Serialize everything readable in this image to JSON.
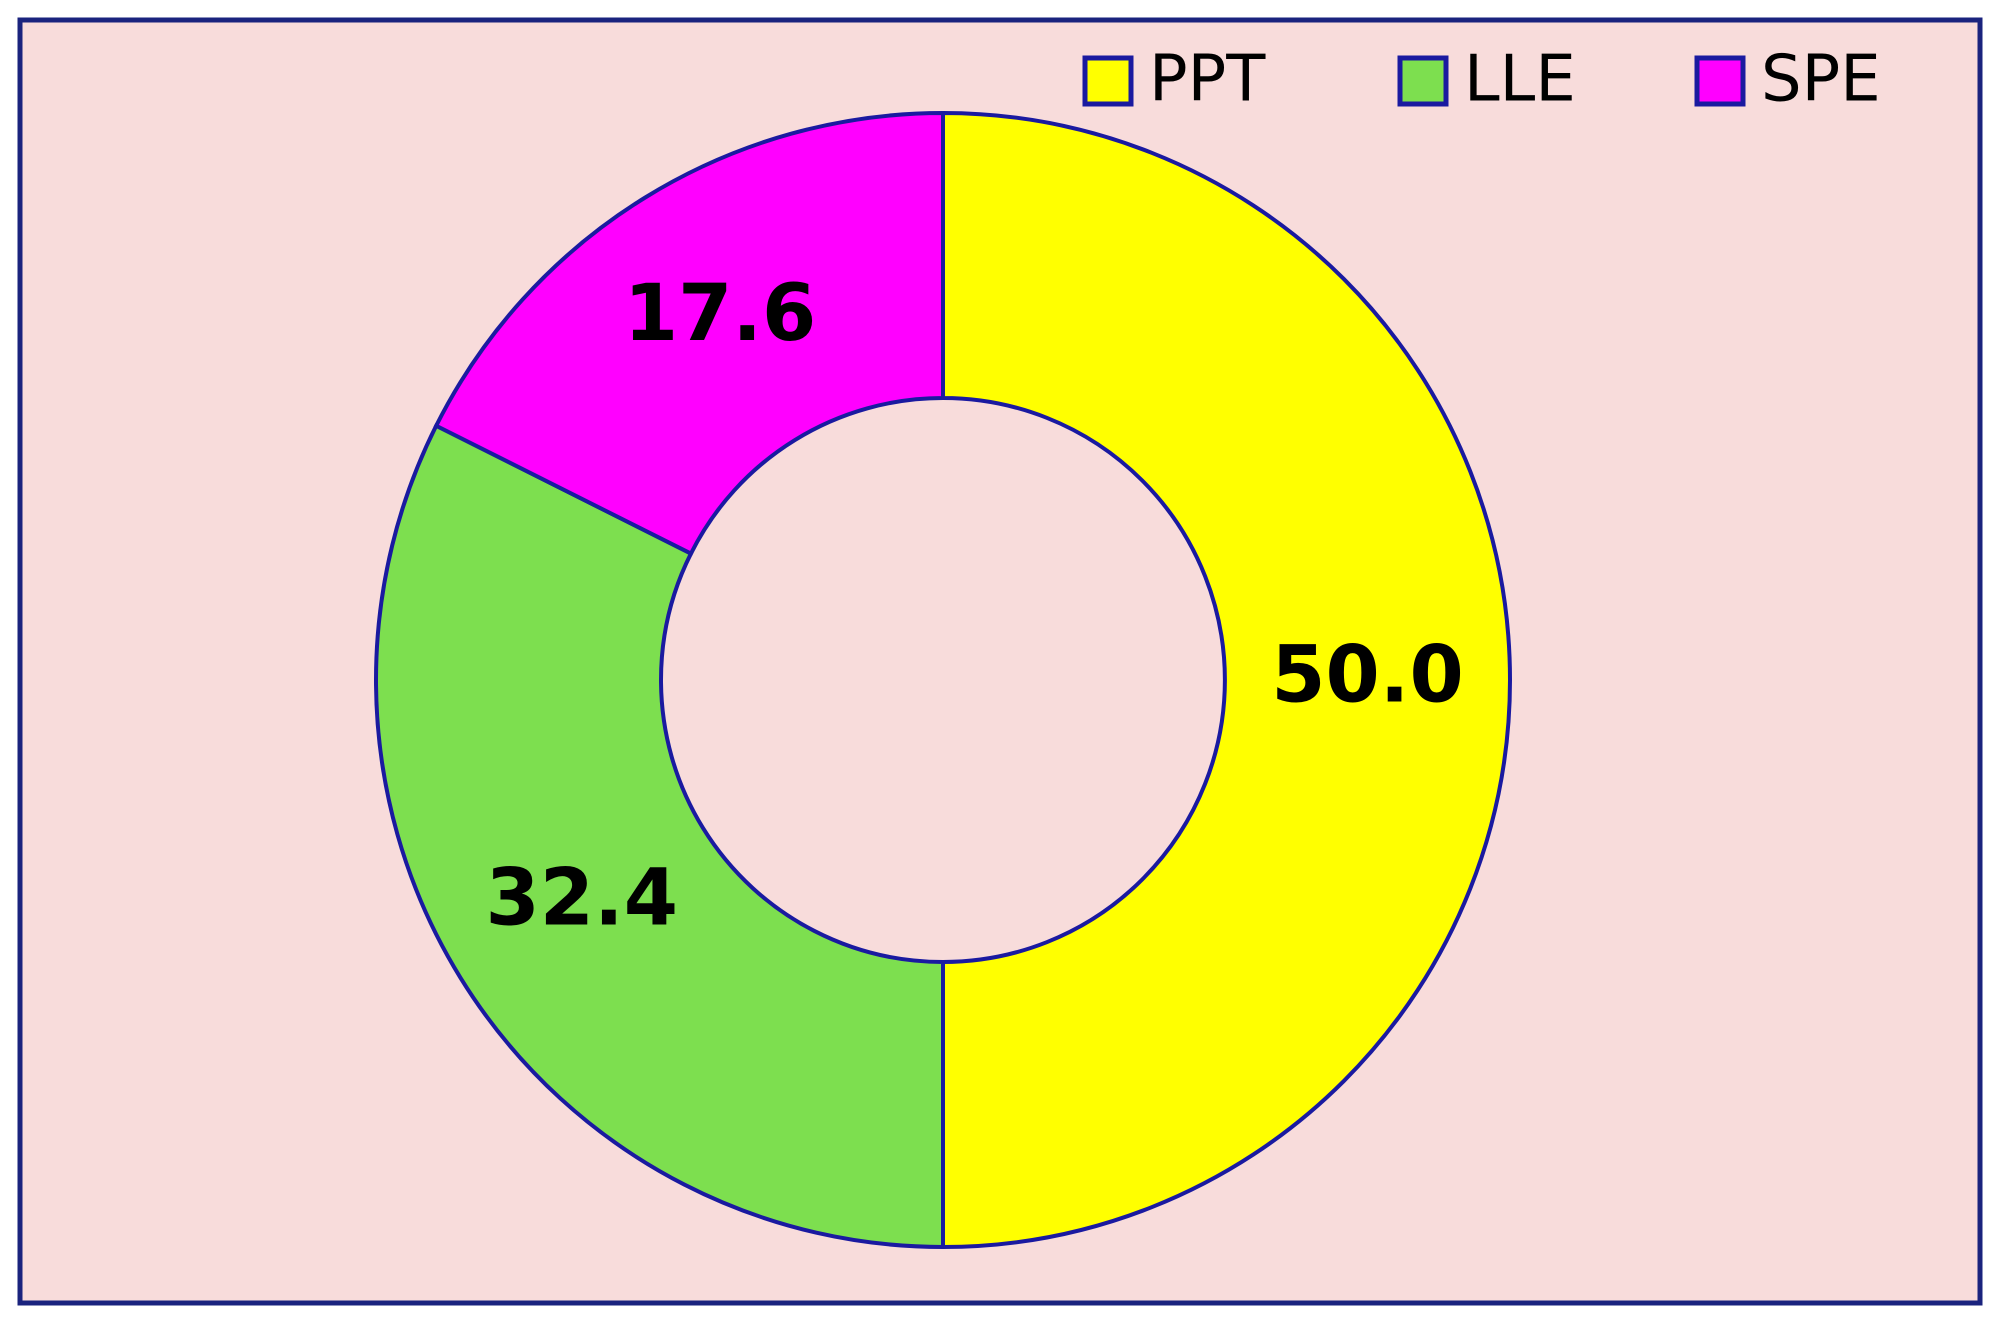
{
  "chart_data": {
    "type": "donut",
    "categories": [
      "PPT",
      "LLE",
      "SPE"
    ],
    "values": [
      50.0,
      32.4,
      17.6
    ],
    "value_labels": [
      "50.0",
      "32.4",
      "17.6"
    ],
    "colors": [
      "#ffff00",
      "#7ddf4f",
      "#ff00ff"
    ],
    "legend": "top-right"
  }
}
